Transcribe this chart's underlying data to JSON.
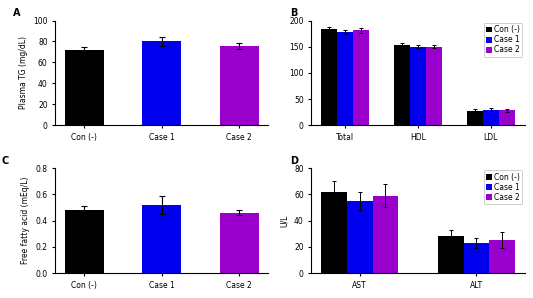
{
  "A": {
    "title": "A",
    "ylabel": "Plasma TG (mg/dL)",
    "categories": [
      "Con (-)",
      "Case 1",
      "Case 2"
    ],
    "values": [
      72,
      80,
      76
    ],
    "errors": [
      3,
      4,
      3
    ],
    "colors": [
      "#000000",
      "#0000EE",
      "#9900CC"
    ],
    "ylim": [
      0,
      100
    ],
    "yticks": [
      0,
      20,
      40,
      60,
      80,
      100
    ],
    "bar_width": 0.5
  },
  "B": {
    "title": "B",
    "ylabel": "",
    "groups": [
      "Total",
      "HDL",
      "LDL"
    ],
    "values": [
      [
        183,
        178,
        181
      ],
      [
        153,
        150,
        150
      ],
      [
        28,
        30,
        29
      ]
    ],
    "errors": [
      [
        5,
        4,
        5
      ],
      [
        4,
        3,
        3
      ],
      [
        3,
        3,
        3
      ]
    ],
    "colors": [
      "#000000",
      "#0000EE",
      "#9900CC"
    ],
    "ylim": [
      0,
      200
    ],
    "yticks": [
      0,
      50,
      100,
      150,
      200
    ],
    "legend_labels": [
      "Con (-)",
      "Case 1",
      "Case 2"
    ],
    "bar_width": 0.22
  },
  "C": {
    "title": "C",
    "ylabel": "Free fatty acid (mEq/L)",
    "categories": [
      "Con (-)",
      "Case 1",
      "Case 2"
    ],
    "values": [
      0.48,
      0.52,
      0.46
    ],
    "errors": [
      0.03,
      0.07,
      0.02
    ],
    "colors": [
      "#000000",
      "#0000EE",
      "#9900CC"
    ],
    "ylim": [
      0.0,
      0.8
    ],
    "yticks": [
      0.0,
      0.2,
      0.4,
      0.6,
      0.8
    ],
    "bar_width": 0.5
  },
  "D": {
    "title": "D",
    "ylabel": "U/L",
    "groups": [
      "AST",
      "ALT"
    ],
    "values": [
      [
        62,
        55,
        59
      ],
      [
        28,
        23,
        25
      ]
    ],
    "errors": [
      [
        8,
        7,
        9
      ],
      [
        5,
        4,
        6
      ]
    ],
    "colors": [
      "#000000",
      "#0000EE",
      "#9900CC"
    ],
    "ylim": [
      0,
      80
    ],
    "yticks": [
      0,
      20,
      40,
      60,
      80
    ],
    "legend_labels": [
      "Con (-)",
      "Case 1",
      "Case 2"
    ],
    "bar_width": 0.22
  },
  "tick_fontsize": 5.5,
  "label_fontsize": 5.5,
  "title_fontsize": 7,
  "legend_fontsize": 5.5
}
